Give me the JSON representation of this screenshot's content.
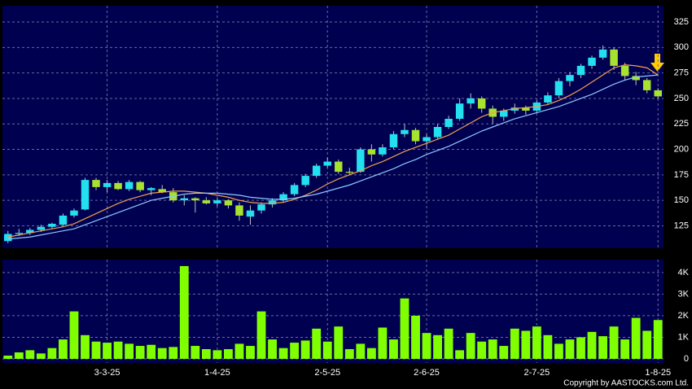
{
  "chart_data": {
    "type": "candlestick",
    "categories": [
      null,
      null,
      null,
      null,
      null,
      null,
      null,
      null,
      null,
      "3-3-25",
      null,
      null,
      null,
      null,
      null,
      null,
      null,
      null,
      null,
      "1-4-25",
      null,
      null,
      null,
      null,
      null,
      null,
      null,
      null,
      null,
      "2-5-25",
      null,
      null,
      null,
      null,
      null,
      null,
      null,
      null,
      "2-6-25",
      null,
      null,
      null,
      null,
      null,
      null,
      null,
      null,
      null,
      "2-7-25",
      null,
      null,
      null,
      null,
      null,
      null,
      null,
      null,
      null,
      null,
      "1-8-25"
    ],
    "open": [
      110,
      117,
      118,
      121,
      124,
      126,
      135,
      141,
      170,
      163,
      167,
      161,
      168,
      160,
      161,
      158,
      150,
      152,
      150,
      147,
      150,
      145,
      134,
      140,
      146,
      150,
      156,
      165,
      174,
      184,
      188,
      178,
      178,
      200,
      195,
      202,
      215,
      219,
      208,
      212,
      222,
      230,
      245,
      250,
      240,
      232,
      238,
      241,
      238,
      246,
      253,
      267,
      273,
      282,
      290,
      298,
      282,
      272,
      268,
      258
    ],
    "high": [
      120,
      122,
      123,
      126,
      128,
      137,
      142,
      172,
      172,
      170,
      169,
      170,
      169,
      163,
      165,
      162,
      155,
      153,
      153,
      152,
      151,
      148,
      145,
      148,
      152,
      158,
      167,
      176,
      186,
      192,
      190,
      182,
      202,
      205,
      205,
      218,
      225,
      221,
      215,
      225,
      233,
      250,
      255,
      252,
      243,
      240,
      245,
      243,
      248,
      256,
      270,
      276,
      284,
      292,
      302,
      300,
      285,
      276,
      270,
      260
    ],
    "low": [
      108,
      115,
      116,
      119,
      122,
      125,
      133,
      140,
      160,
      158,
      160,
      159,
      158,
      155,
      157,
      148,
      145,
      138,
      146,
      144,
      142,
      130,
      126,
      137,
      143,
      148,
      154,
      163,
      172,
      182,
      176,
      175,
      177,
      188,
      193,
      200,
      212,
      205,
      200,
      210,
      220,
      228,
      240,
      236,
      225,
      228,
      235,
      234,
      236,
      244,
      250,
      262,
      270,
      279,
      288,
      278,
      268,
      263,
      255,
      250
    ],
    "close": [
      117,
      118,
      121,
      124,
      127,
      135,
      140,
      170,
      163,
      167,
      161,
      168,
      160,
      162,
      158,
      150,
      152,
      150,
      147,
      150,
      145,
      135,
      140,
      146,
      150,
      156,
      165,
      174,
      184,
      188,
      178,
      177,
      200,
      195,
      202,
      215,
      219,
      208,
      212,
      222,
      230,
      245,
      250,
      240,
      232,
      238,
      241,
      238,
      246,
      253,
      267,
      273,
      282,
      290,
      298,
      282,
      272,
      268,
      258,
      252
    ],
    "up_color": "#22e0f0",
    "down_color": "#a6e22e",
    "ma": [
      {
        "color": "#f0a050",
        "values": [
          114,
          116,
          118,
          120,
          122,
          124,
          127,
          132,
          137,
          142,
          147,
          151,
          154,
          157,
          158,
          159,
          159,
          158,
          157,
          155,
          153,
          150,
          148,
          147,
          147,
          148,
          151,
          155,
          160,
          166,
          171,
          175,
          179,
          184,
          188,
          193,
          198,
          202,
          206,
          210,
          214,
          220,
          226,
          232,
          236,
          238,
          240,
          241,
          242,
          244,
          248,
          253,
          259,
          266,
          273,
          280,
          283,
          282,
          280,
          273
        ]
      },
      {
        "color": "#8ec8ff",
        "values": [
          112,
          113,
          114,
          116,
          118,
          120,
          122,
          126,
          130,
          134,
          138,
          142,
          146,
          150,
          152,
          154,
          156,
          157,
          157,
          157,
          156,
          155,
          153,
          152,
          151,
          151,
          152,
          154,
          156,
          159,
          162,
          165,
          169,
          173,
          177,
          181,
          186,
          190,
          195,
          199,
          203,
          208,
          213,
          218,
          222,
          226,
          230,
          233,
          236,
          239,
          242,
          246,
          250,
          254,
          259,
          264,
          268,
          271,
          272,
          273
        ]
      }
    ],
    "ylim": [
      103,
      341
    ],
    "yticks": [
      125,
      150,
      175,
      200,
      225,
      250,
      275,
      300,
      325
    ],
    "grid": true,
    "volume": {
      "color": "#80ff00",
      "values": [
        150,
        300,
        400,
        250,
        500,
        900,
        2200,
        1100,
        800,
        750,
        800,
        700,
        600,
        650,
        500,
        550,
        4300,
        600,
        450,
        400,
        450,
        700,
        600,
        2200,
        900,
        500,
        750,
        850,
        1400,
        800,
        1500,
        450,
        700,
        500,
        1450,
        900,
        2800,
        2000,
        1200,
        1100,
        1400,
        400,
        1200,
        800,
        900,
        600,
        1400,
        1300,
        1500,
        1100,
        700,
        900,
        1000,
        1250,
        1050,
        1500,
        900,
        1900,
        1300,
        1800
      ],
      "ylim": [
        -190,
        4600
      ],
      "yticks": [
        0,
        {
          "value": 1000,
          "label": "1K"
        },
        {
          "value": 2000,
          "label": "2K"
        },
        {
          "value": 3000,
          "label": "3K"
        },
        {
          "value": 4000,
          "label": "4K"
        }
      ]
    }
  },
  "copyright": "Copyright by AASTOCKS.com Ltd."
}
